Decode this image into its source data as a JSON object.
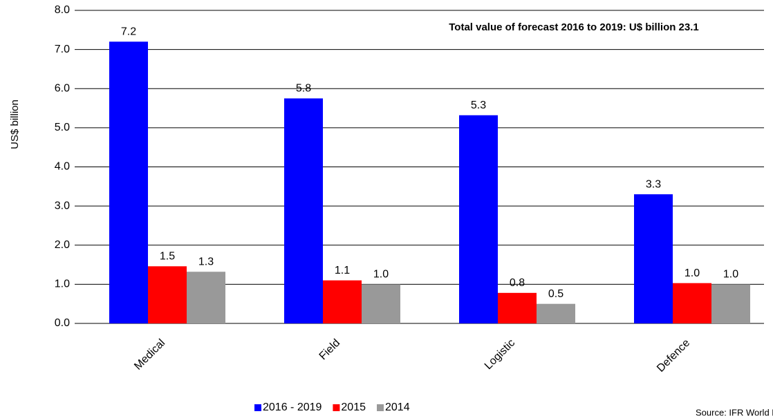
{
  "chart_data": {
    "type": "bar",
    "annotation": "Total value of forecast 2016 to 2019: U$ billion 23.1",
    "y_label": "US$ billion",
    "source": "Source: IFR World Robotics",
    "categories": [
      "Medical",
      "Field",
      "Logistic",
      "Defence"
    ],
    "series": [
      {
        "name": "2016 - 2019",
        "color": "#0000ff",
        "values": [
          7.2,
          5.75,
          5.32,
          3.3
        ],
        "value_labels": [
          "7.2",
          "5.8",
          "5.3",
          "3.3"
        ]
      },
      {
        "name": "2015",
        "color": "#ff0000",
        "values": [
          1.46,
          1.1,
          0.78,
          1.03
        ],
        "value_labels": [
          "1.5",
          "1.1",
          "0.8",
          "1.0"
        ]
      },
      {
        "name": "2014",
        "color": "#999999",
        "values": [
          1.32,
          1.0,
          0.5,
          1.0
        ],
        "value_labels": [
          "1.3",
          "1.0",
          "0.5",
          "1.0"
        ]
      }
    ],
    "ylim": [
      0,
      8
    ],
    "yticks": [
      {
        "value": 0,
        "label": "0.0"
      },
      {
        "value": 1,
        "label": "1.0"
      },
      {
        "value": 2,
        "label": "2.0"
      },
      {
        "value": 3,
        "label": "3.0"
      },
      {
        "value": 4,
        "label": "4.0"
      },
      {
        "value": 5,
        "label": "5.0"
      },
      {
        "value": 6,
        "label": "6.0"
      },
      {
        "value": 7,
        "label": "7.0"
      },
      {
        "value": 8,
        "label": "8.0"
      }
    ],
    "grid": true,
    "legend": "bottom"
  }
}
